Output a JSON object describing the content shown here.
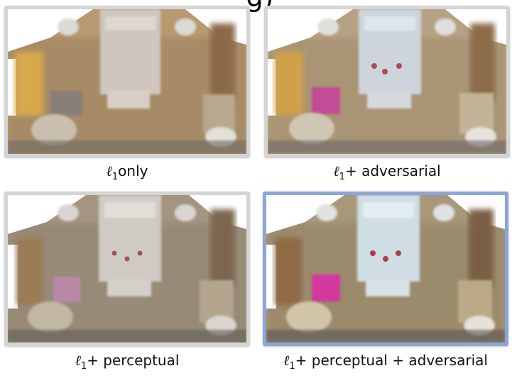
{
  "title_fragment": "g)",
  "panels": [
    {
      "symbol": "ℓ",
      "subscript": "1",
      "caption": "only",
      "highlighted": false
    },
    {
      "symbol": "ℓ",
      "subscript": "1",
      "caption": "+ adversarial",
      "highlighted": false
    },
    {
      "symbol": "ℓ",
      "subscript": "1",
      "caption": "+ perceptual",
      "highlighted": false
    },
    {
      "symbol": "ℓ",
      "subscript": "1",
      "caption": "+ perceptual + adversarial",
      "highlighted": true
    }
  ],
  "colors": {
    "frame_gray": "#d4d4d4",
    "frame_blue": "#8aa6d8"
  }
}
